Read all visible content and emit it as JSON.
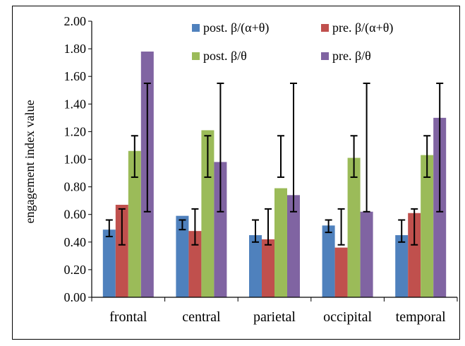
{
  "chart_data": {
    "type": "bar",
    "title": "",
    "xlabel": "",
    "ylabel": "engagement index value",
    "ylim": [
      0,
      2
    ],
    "yticks": [
      "0.00",
      "0.20",
      "0.40",
      "0.60",
      "0.80",
      "1.00",
      "1.20",
      "1.40",
      "1.60",
      "1.80",
      "2.00"
    ],
    "categories": [
      "frontal",
      "central",
      "parietal",
      "occipital",
      "temporal"
    ],
    "grid": false,
    "legend_position": "top",
    "series": [
      {
        "name": "post. β/(α+θ)",
        "color": "#4f81bd",
        "values": [
          0.49,
          0.59,
          0.45,
          0.52,
          0.45
        ],
        "error_low": [
          0.44,
          0.49,
          0.4,
          0.47,
          0.4
        ],
        "error_high": [
          0.56,
          0.56,
          0.56,
          0.56,
          0.56
        ]
      },
      {
        "name": "pre. β/(α+θ)",
        "color": "#c0504d",
        "values": [
          0.67,
          0.48,
          0.42,
          0.36,
          0.61
        ],
        "error_low": [
          0.38,
          0.38,
          0.38,
          0.38,
          0.38
        ],
        "error_high": [
          0.64,
          0.64,
          0.64,
          0.64,
          0.64
        ]
      },
      {
        "name": "post. β/θ",
        "color": "#9bbb59",
        "values": [
          1.06,
          1.21,
          0.79,
          1.01,
          1.03
        ],
        "error_low": [
          0.87,
          0.87,
          0.87,
          0.87,
          0.87
        ],
        "error_high": [
          1.17,
          1.17,
          1.17,
          1.17,
          1.17
        ]
      },
      {
        "name": "pre. β/θ",
        "color": "#8064a2",
        "values": [
          1.78,
          0.98,
          0.74,
          0.62,
          1.3
        ],
        "error_low": [
          0.62,
          0.62,
          0.62,
          0.62,
          0.62
        ],
        "error_high": [
          1.55,
          1.55,
          1.55,
          1.55,
          1.55
        ]
      }
    ]
  }
}
